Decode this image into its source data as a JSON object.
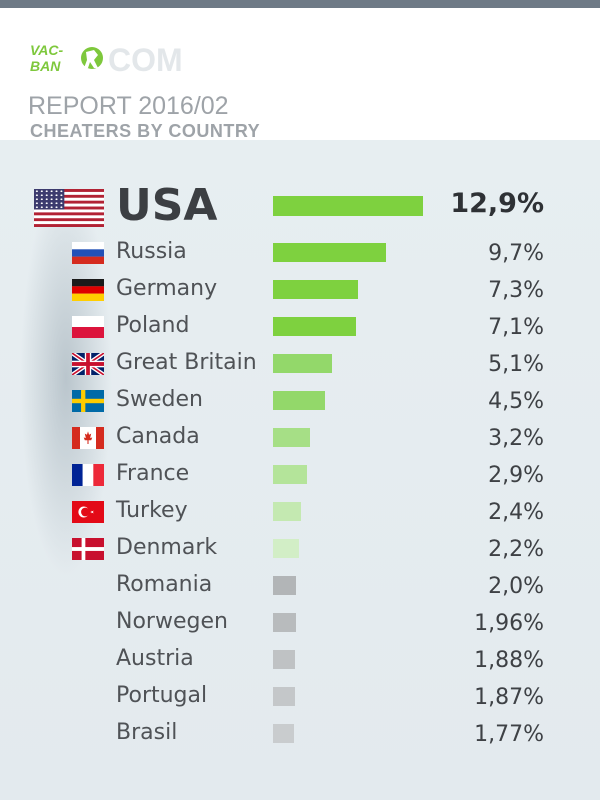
{
  "logo": {
    "line1": "VAC-",
    "line2": "BAN",
    "suffix": "COM",
    "brand_green": "#7ec83c",
    "brand_gray": "#dfe3e6"
  },
  "header": {
    "report": "REPORT 2016/02",
    "subtitle": "CHEATERS BY COUNTRY"
  },
  "chart_data": {
    "type": "bar",
    "orientation": "horizontal",
    "title": "CHEATERS BY COUNTRY",
    "categories": [
      "USA",
      "Russia",
      "Germany",
      "Poland",
      "Great Britain",
      "Sweden",
      "Canada",
      "France",
      "Turkey",
      "Denmark",
      "Romania",
      "Norwegen",
      "Austria",
      "Portugal",
      "Brasil"
    ],
    "values": [
      12.9,
      9.7,
      7.3,
      7.1,
      5.1,
      4.5,
      3.2,
      2.9,
      2.4,
      2.2,
      2.0,
      1.96,
      1.88,
      1.87,
      1.77
    ],
    "labels": [
      "12,9%",
      "9,7%",
      "7,3%",
      "7,1%",
      "5,1%",
      "4,5%",
      "3,2%",
      "2,9%",
      "2,4%",
      "2,2%",
      "2,0%",
      "1,96%",
      "1,88%",
      "1,87%",
      "1,77%"
    ],
    "xlim": [
      0,
      12.9
    ],
    "colors": [
      "#7ed13f",
      "#7ed13f",
      "#7ed13f",
      "#7ed13f",
      "#93d86a",
      "#93d86a",
      "#a6df86",
      "#b4e49a",
      "#c4e9b1",
      "#d2eec6",
      "#b2b5b7",
      "#b8bbbd",
      "#bfc2c4",
      "#c4c7c9",
      "#c9ccce"
    ],
    "flags": [
      "usa",
      "russia",
      "germany",
      "poland",
      "great-britain",
      "sweden",
      "canada",
      "france",
      "turkey",
      "denmark",
      "",
      "",
      "",
      "",
      ""
    ]
  }
}
